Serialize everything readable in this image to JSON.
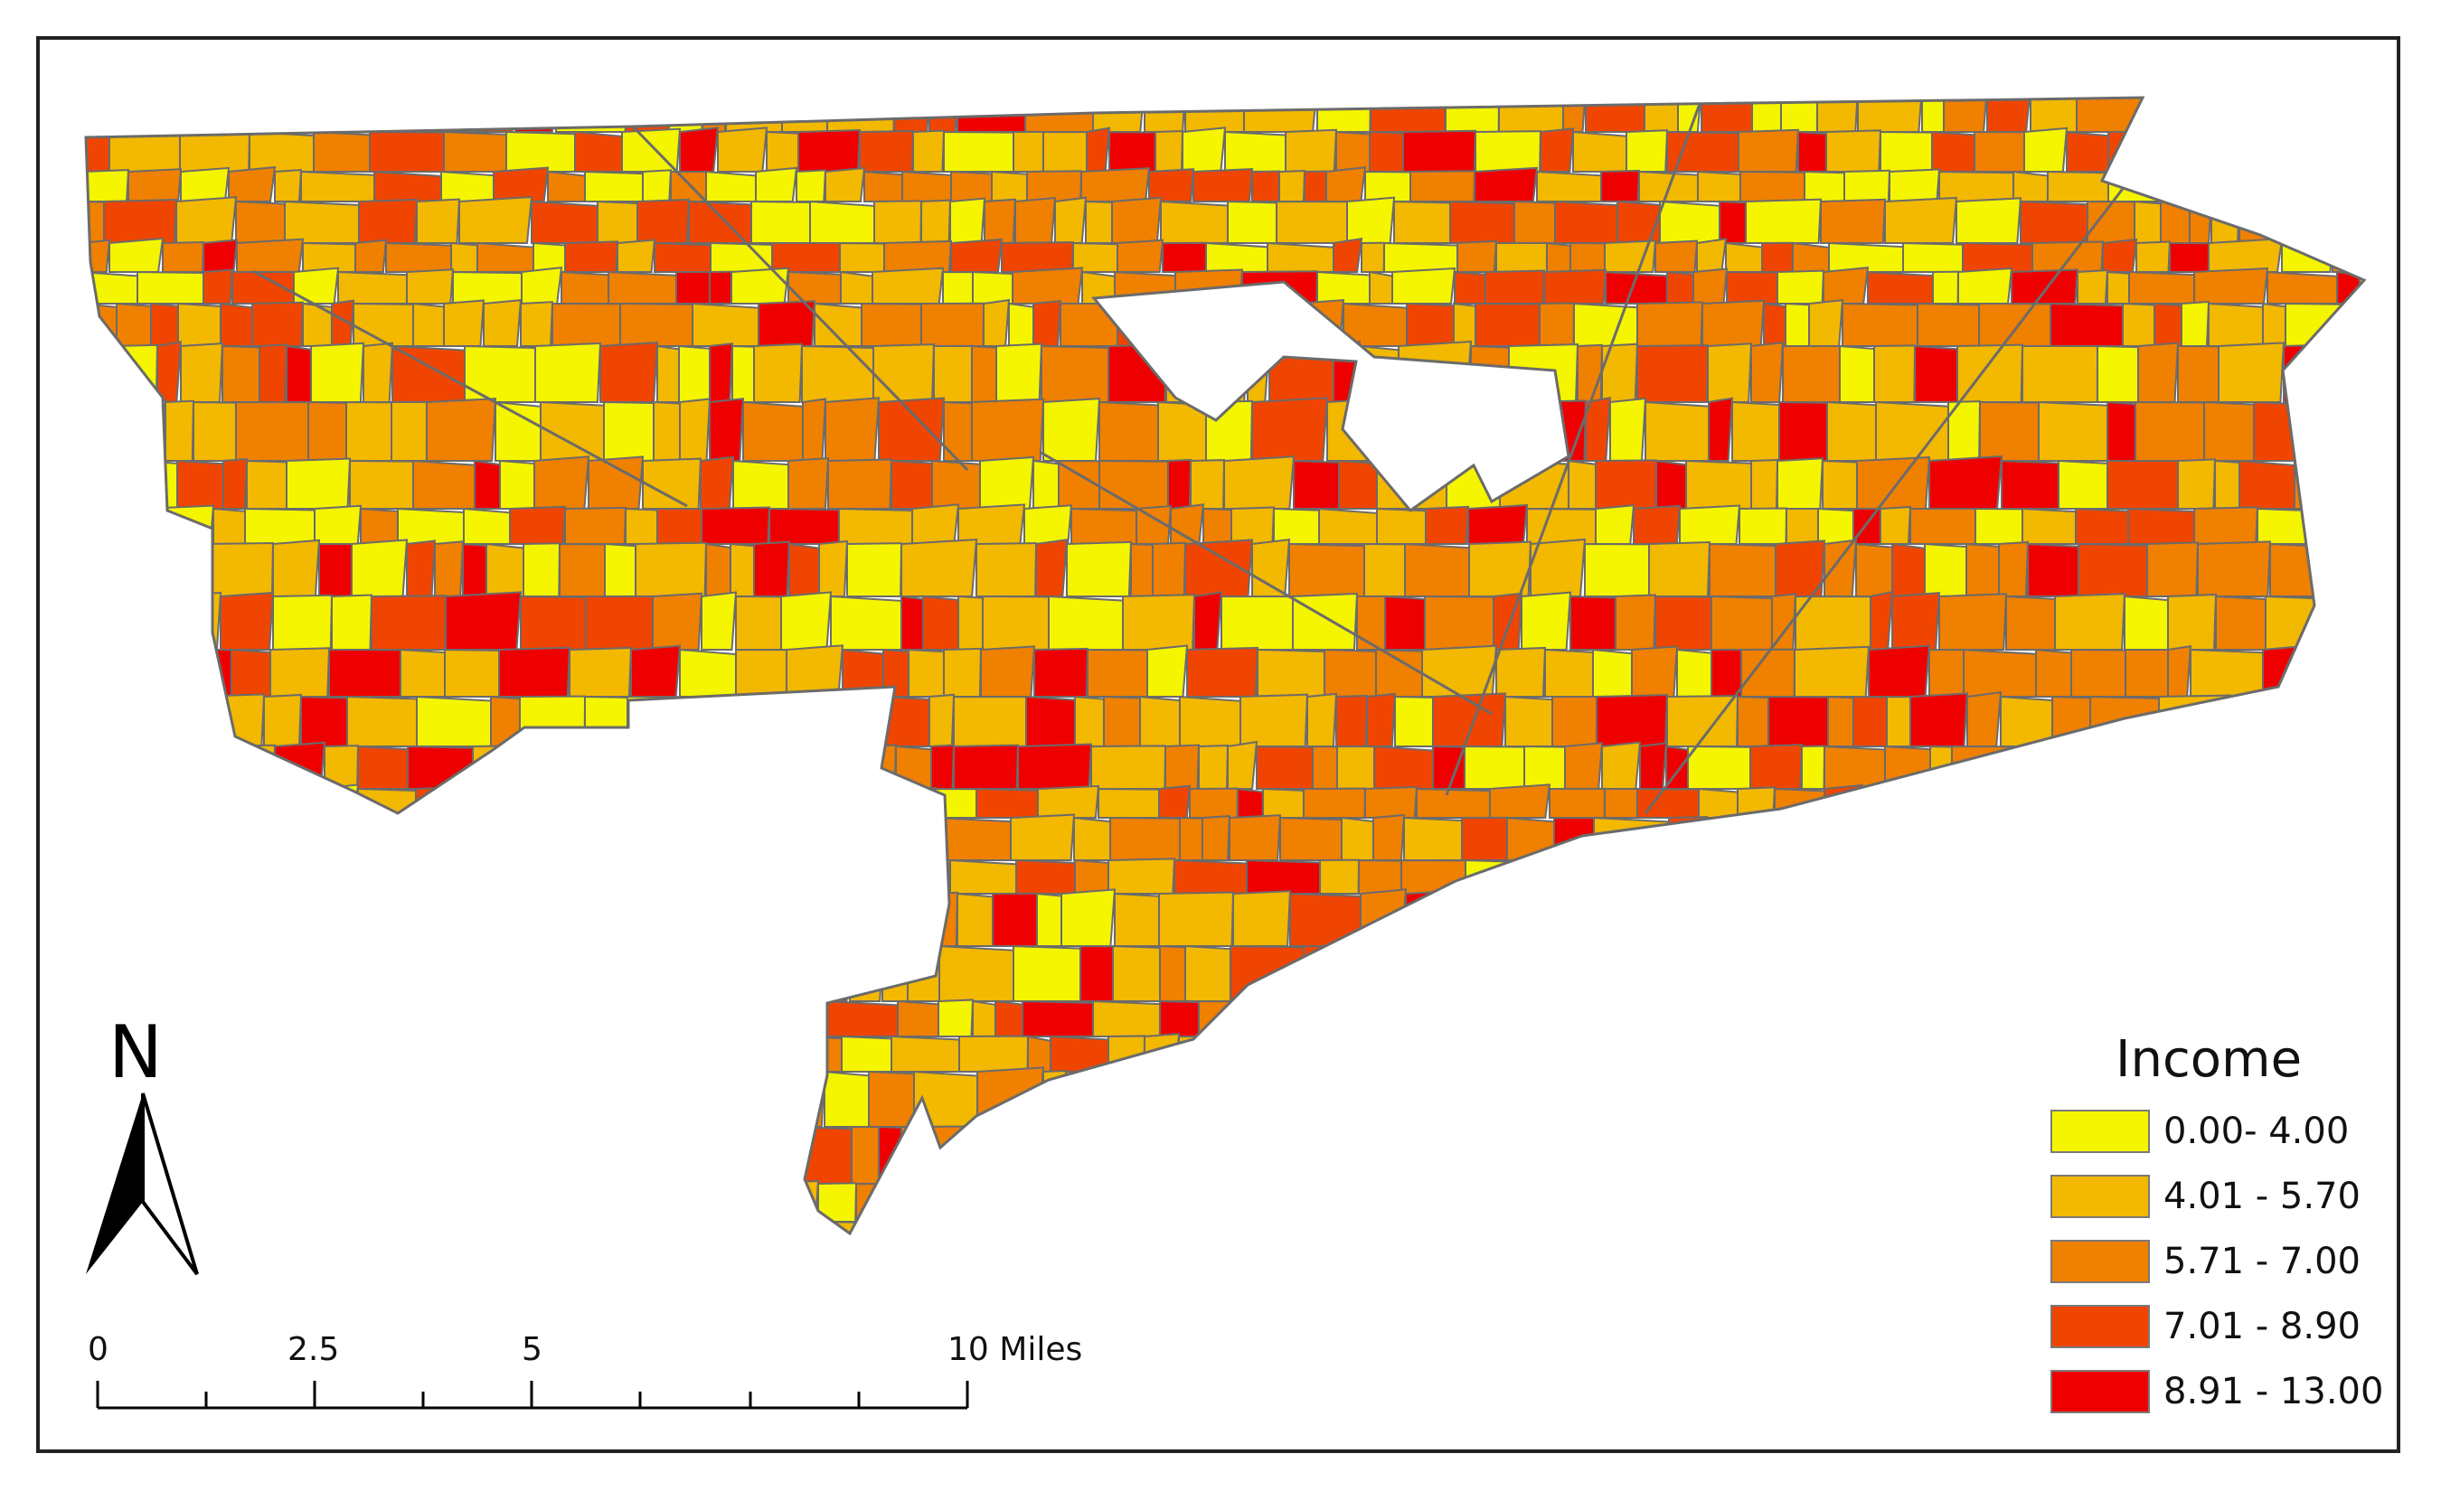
{
  "map": {
    "background": "#ffffff",
    "boundary_color": "#6b6b6b",
    "nodata_color": "#d3d3d3"
  },
  "legend": {
    "title": "Income",
    "classes": [
      {
        "label": "0.00- 4.00",
        "color": "#f5f500"
      },
      {
        "label": "4.01 - 5.70",
        "color": "#f3b800"
      },
      {
        "label": "5.71 - 7.00",
        "color": "#f08000"
      },
      {
        "label": "7.01 - 8.90",
        "color": "#f04500"
      },
      {
        "label": "8.91 - 13.00",
        "color": "#ef0000"
      }
    ]
  },
  "north_arrow": {
    "label": "N",
    "icon": "north-arrow-icon"
  },
  "scale_bar": {
    "labels": [
      "0",
      "2.5",
      "5",
      "10 Miles"
    ]
  }
}
